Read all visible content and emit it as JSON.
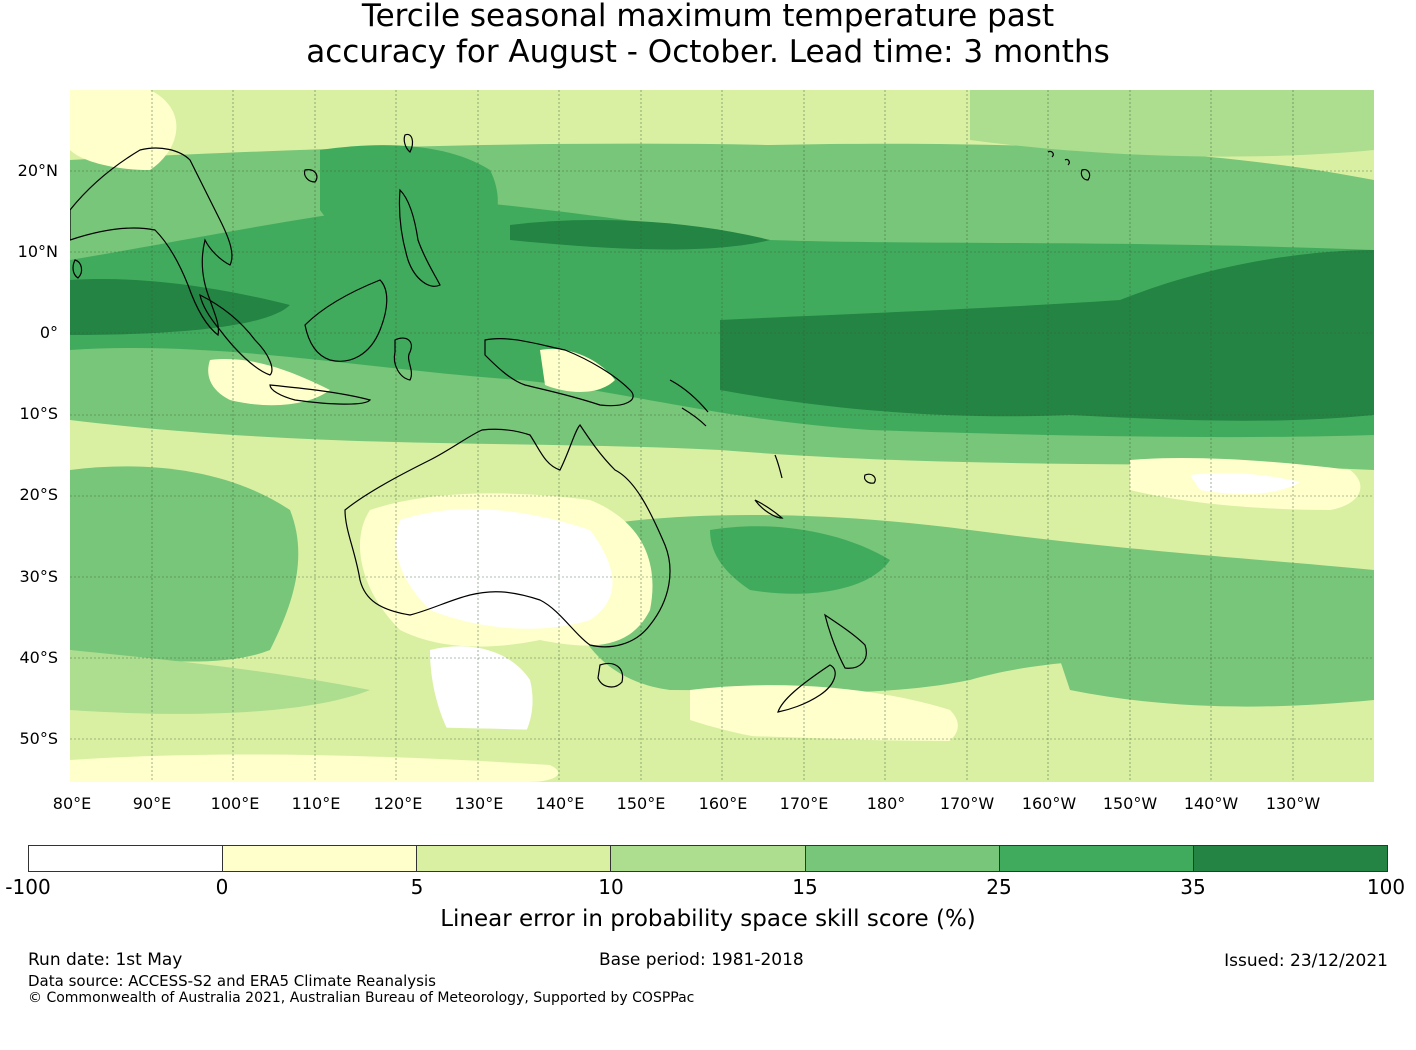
{
  "title": {
    "line1": "Tercile seasonal maximum temperature past",
    "line2": "accuracy for August - October. Lead time: 3 months"
  },
  "map": {
    "lat_labels": [
      "20°N",
      "10°N",
      "0°",
      "10°S",
      "20°S",
      "30°S",
      "40°S",
      "50°S"
    ],
    "lon_labels": [
      "80°E",
      "90°E",
      "100°E",
      "110°E",
      "120°E",
      "130°E",
      "140°E",
      "150°E",
      "160°E",
      "170°E",
      "180°",
      "170°W",
      "160°W",
      "150°W",
      "140°W",
      "130°W"
    ],
    "grid_lines": true
  },
  "colorbar": {
    "ticks": [
      "-100",
      "0",
      "5",
      "10",
      "15",
      "25",
      "35",
      "100"
    ],
    "colors": [
      "#ffffff",
      "#ffffcc",
      "#d9f0a3",
      "#addd8e",
      "#78c679",
      "#41ab5d",
      "#238443"
    ],
    "label": "Linear error in probability space skill score (%)"
  },
  "footer": {
    "run_date": "Run date: 1st May",
    "base_period": "Base period: 1981-2018",
    "issued": "Issued: 23/12/2021",
    "data_source": "Data source: ACCESS-S2 and ERA5 Climate Reanalysis",
    "copyright": "© Commonwealth of Australia 2021, Australian Bureau of Meteorology, Supported by COSPPac"
  }
}
